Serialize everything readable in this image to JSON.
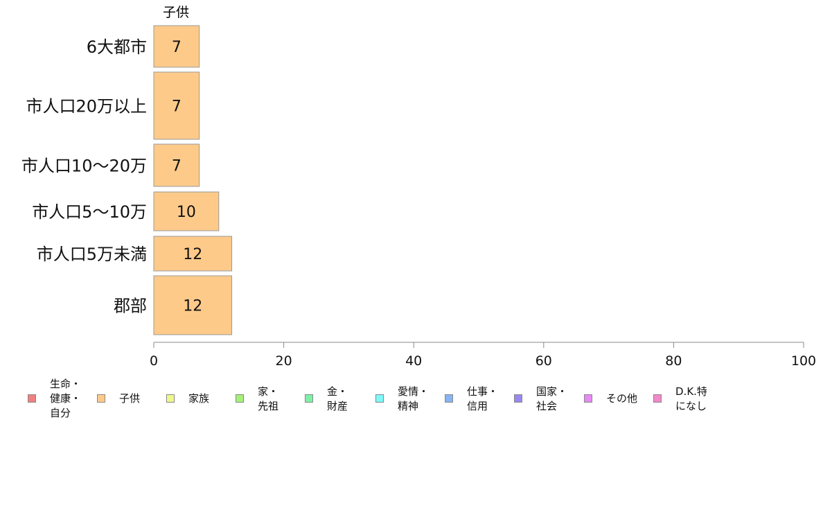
{
  "chart_data": {
    "type": "bar",
    "orientation": "horizontal",
    "stacked": true,
    "categories": [
      "6大都市",
      "市人口20万以上",
      "市人口10〜20万",
      "市人口5〜10万",
      "市人口5万未満",
      "郡部"
    ],
    "series": [
      {
        "name": "生命・健康・自分",
        "color": "#f08080",
        "values": [
          0,
          0,
          0,
          0,
          0,
          0
        ]
      },
      {
        "name": "子供",
        "color": "#fdca8a",
        "values": [
          7,
          7,
          7,
          10,
          12,
          12
        ],
        "labels": [
          "7",
          "7",
          "7",
          "10",
          "12",
          "12"
        ]
      },
      {
        "name": "家族",
        "color": "#eef78a",
        "values": [
          0,
          0,
          0,
          0,
          0,
          0
        ]
      },
      {
        "name": "家・先祖",
        "color": "#a6f07a",
        "values": [
          0,
          0,
          0,
          0,
          0,
          0
        ]
      },
      {
        "name": "金・財産",
        "color": "#7ef0a8",
        "values": [
          0,
          0,
          0,
          0,
          0,
          0
        ]
      },
      {
        "name": "愛情・精神",
        "color": "#80f8f8",
        "values": [
          0,
          0,
          0,
          0,
          0,
          0
        ]
      },
      {
        "name": "仕事・信用",
        "color": "#86b4f4",
        "values": [
          0,
          0,
          0,
          0,
          0,
          0
        ]
      },
      {
        "name": "国家・社会",
        "color": "#9a88f0",
        "values": [
          0,
          0,
          0,
          0,
          0,
          0
        ]
      },
      {
        "name": "その他",
        "color": "#e68af4",
        "values": [
          0,
          0,
          0,
          0,
          0,
          0
        ]
      },
      {
        "name": "D.K.特になし",
        "color": "#f08ac8",
        "values": [
          0,
          0,
          0,
          0,
          0,
          0
        ]
      }
    ],
    "series_header": "子供",
    "xlim": [
      0,
      100
    ],
    "xticks": [
      "0",
      "20",
      "40",
      "60",
      "80",
      "100"
    ],
    "grid": false,
    "legend_position": "bottom"
  },
  "legend": [
    {
      "label": "生命・\n健康・\n自分",
      "color": "#f08080"
    },
    {
      "label": "子供",
      "color": "#fdca8a"
    },
    {
      "label": "家族",
      "color": "#eef78a"
    },
    {
      "label": "家・\n先祖",
      "color": "#a6f07a"
    },
    {
      "label": "金・\n財産",
      "color": "#7ef0a8"
    },
    {
      "label": "愛情・\n精神",
      "color": "#80f8f8"
    },
    {
      "label": "仕事・\n信用",
      "color": "#86b4f4"
    },
    {
      "label": "国家・\n社会",
      "color": "#9a88f0"
    },
    {
      "label": "その他",
      "color": "#e68af4"
    },
    {
      "label": "D.K.特\nになし",
      "color": "#f08ac8"
    }
  ]
}
